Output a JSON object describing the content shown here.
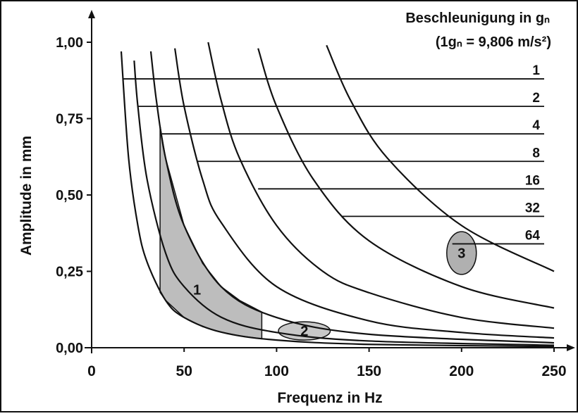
{
  "chart_data": {
    "type": "line",
    "title": "Beschleunigung in gₙ",
    "subtitle": "(1gₙ = 9,806 m/s²)",
    "xlabel": "Frequenz in Hz",
    "ylabel": "Amplitude in mm",
    "xlim": [
      0,
      250
    ],
    "ylim": [
      0,
      1
    ],
    "xticks": [
      0,
      50,
      100,
      150,
      200,
      250
    ],
    "yticks": [
      {
        "value": 0,
        "label": "0,00"
      },
      {
        "value": 0.25,
        "label": "0,25"
      },
      {
        "value": 0.5,
        "label": "0,50"
      },
      {
        "value": 0.75,
        "label": "0,75"
      },
      {
        "value": 1,
        "label": "1,00"
      }
    ],
    "series": [
      {
        "name": "1",
        "color": "#111111",
        "label_y": 0.88,
        "label_x": 17,
        "x": [
          16,
          20,
          25,
          30,
          40,
          50,
          70,
          100,
          150,
          250
        ],
        "values": [
          0.97,
          0.62,
          0.4,
          0.28,
          0.155,
          0.099,
          0.051,
          0.025,
          0.011,
          0.004
        ]
      },
      {
        "name": "2",
        "color": "#111111",
        "label_y": 0.79,
        "label_x": 25,
        "x": [
          23,
          25,
          30,
          40,
          50,
          70,
          100,
          150,
          250
        ],
        "values": [
          0.94,
          0.79,
          0.55,
          0.31,
          0.2,
          0.1,
          0.05,
          0.022,
          0.008
        ]
      },
      {
        "name": "4",
        "color": "#111111",
        "label_y": 0.7,
        "label_x": 38,
        "x": [
          32,
          35,
          40,
          50,
          70,
          100,
          150,
          250
        ],
        "values": [
          0.97,
          0.81,
          0.62,
          0.4,
          0.2,
          0.099,
          0.044,
          0.016
        ]
      },
      {
        "name": "8",
        "color": "#111111",
        "label_y": 0.61,
        "label_x": 57,
        "x": [
          45,
          50,
          60,
          70,
          100,
          150,
          200,
          250
        ],
        "values": [
          0.98,
          0.79,
          0.55,
          0.41,
          0.2,
          0.088,
          0.05,
          0.032
        ]
      },
      {
        "name": "16",
        "color": "#111111",
        "label_y": 0.52,
        "label_x": 90,
        "x": [
          63,
          70,
          80,
          100,
          125,
          150,
          200,
          250
        ],
        "values": [
          1.0,
          0.81,
          0.62,
          0.4,
          0.25,
          0.18,
          0.099,
          0.064
        ]
      },
      {
        "name": "32",
        "color": "#111111",
        "label_y": 0.43,
        "label_x": 135,
        "x": [
          90,
          100,
          120,
          150,
          200,
          250
        ],
        "values": [
          0.98,
          0.79,
          0.55,
          0.35,
          0.2,
          0.13
        ]
      },
      {
        "name": "64",
        "color": "#111111",
        "label_y": 0.34,
        "label_x": 195,
        "x": [
          127,
          140,
          160,
          200,
          250
        ],
        "values": [
          0.99,
          0.81,
          0.62,
          0.4,
          0.25
        ]
      }
    ],
    "regions": [
      {
        "label": "1",
        "color": "#bdbdbd",
        "label_x": 57,
        "label_y": 0.19,
        "x": [
          37,
          40,
          50,
          60,
          70,
          80,
          92,
          92,
          80,
          70,
          60,
          50,
          40,
          37
        ],
        "y": [
          0.726,
          0.62,
          0.4,
          0.276,
          0.2,
          0.155,
          0.117,
          0.029,
          0.039,
          0.051,
          0.069,
          0.099,
          0.155,
          0.181
        ]
      },
      {
        "label": "2",
        "color": "#c8c8c8",
        "label_x": 115,
        "label_y": 0.055,
        "rx": 14,
        "ry": 0.03
      },
      {
        "label": "3",
        "color": "#b0b0b0",
        "label_x": 200,
        "label_y": 0.31,
        "rx": 8,
        "ry": 0.07
      }
    ]
  }
}
